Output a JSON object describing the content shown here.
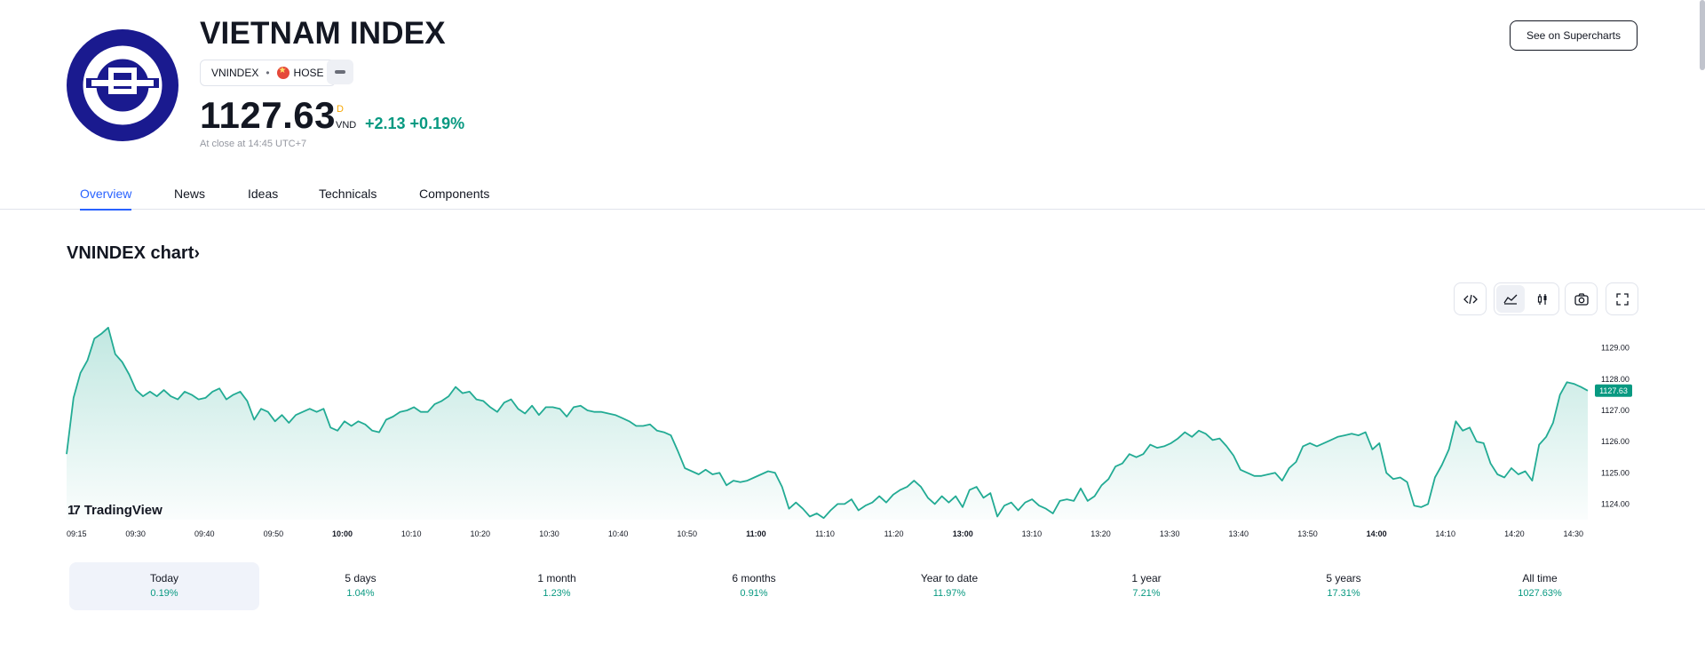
{
  "header": {
    "title": "VIETNAM INDEX",
    "symbol": "VNINDEX",
    "exchange": "HOSE",
    "price": "1127.63",
    "price_mark": "D",
    "currency": "VND",
    "change": "+2.13 +0.19%",
    "close_time": "At close at 14:45 UTC+7",
    "supercharts_label": "See on Supercharts",
    "accent_color": "#089981"
  },
  "tabs": [
    {
      "label": "Overview",
      "active": true
    },
    {
      "label": "News"
    },
    {
      "label": "Ideas"
    },
    {
      "label": "Technicals"
    },
    {
      "label": "Components"
    }
  ],
  "chart_section": {
    "title": "VNINDEX chart",
    "toolbar_icons": [
      "embed-icon",
      "area-chart-icon",
      "candles-icon",
      "camera-icon",
      "fullscreen-icon"
    ],
    "brand": "TradingView",
    "last_price_label": "1127.63"
  },
  "chart_data": {
    "type": "area",
    "y_ticks": [
      "1129.00",
      "1128.00",
      "1127.00",
      "1126.00",
      "1125.00",
      "1124.00"
    ],
    "x_ticks": [
      "09:15",
      "09:30",
      "09:40",
      "09:50",
      "10:00",
      "10:10",
      "10:20",
      "10:30",
      "10:40",
      "10:50",
      "11:00",
      "11:10",
      "11:20",
      "13:00",
      "13:10",
      "13:20",
      "13:30",
      "13:40",
      "13:50",
      "14:00",
      "14:10",
      "14:20",
      "14:30"
    ],
    "bold_x_ticks": [
      "10:00",
      "11:00",
      "13:00",
      "14:00"
    ],
    "ylim": [
      1123.5,
      1129.9
    ],
    "line_color": "#22ab94",
    "values": [
      1125.6,
      1127.4,
      1128.2,
      1128.6,
      1129.3,
      1129.45,
      1129.65,
      1128.8,
      1128.55,
      1128.15,
      1127.65,
      1127.45,
      1127.6,
      1127.45,
      1127.65,
      1127.45,
      1127.35,
      1127.6,
      1127.5,
      1127.35,
      1127.4,
      1127.6,
      1127.7,
      1127.35,
      1127.5,
      1127.6,
      1127.3,
      1126.7,
      1127.05,
      1126.95,
      1126.65,
      1126.85,
      1126.6,
      1126.85,
      1126.95,
      1127.05,
      1126.95,
      1127.05,
      1126.45,
      1126.35,
      1126.65,
      1126.5,
      1126.65,
      1126.55,
      1126.35,
      1126.3,
      1126.7,
      1126.8,
      1126.95,
      1127.0,
      1127.1,
      1126.95,
      1126.95,
      1127.2,
      1127.3,
      1127.45,
      1127.75,
      1127.55,
      1127.6,
      1127.35,
      1127.3,
      1127.1,
      1126.95,
      1127.25,
      1127.35,
      1127.05,
      1126.9,
      1127.15,
      1126.85,
      1127.1,
      1127.1,
      1127.05,
      1126.8,
      1127.1,
      1127.15,
      1127.0,
      1126.95,
      1126.95,
      1126.9,
      1126.85,
      1126.75,
      1126.65,
      1126.5,
      1126.5,
      1126.55,
      1126.35,
      1126.3,
      1126.2,
      1125.7,
      1125.15,
      1125.05,
      1124.95,
      1125.1,
      1124.95,
      1125.0,
      1124.6,
      1124.75,
      1124.7,
      1124.75,
      1124.85,
      1124.95,
      1125.05,
      1125.0,
      1124.55,
      1123.85,
      1124.05,
      1123.85,
      1123.6,
      1123.7,
      1123.55,
      1123.8,
      1124.0,
      1124.0,
      1124.15,
      1123.8,
      1123.95,
      1124.05,
      1124.25,
      1124.05,
      1124.3,
      1124.45,
      1124.55,
      1124.75,
      1124.55,
      1124.2,
      1124.0,
      1124.25,
      1124.05,
      1124.25,
      1123.9,
      1124.45,
      1124.55,
      1124.2,
      1124.35,
      1123.6,
      1123.95,
      1124.05,
      1123.8,
      1124.05,
      1124.15,
      1123.95,
      1123.85,
      1123.7,
      1124.1,
      1124.15,
      1124.1,
      1124.5,
      1124.1,
      1124.25,
      1124.6,
      1124.8,
      1125.2,
      1125.3,
      1125.6,
      1125.5,
      1125.6,
      1125.9,
      1125.8,
      1125.85,
      1125.95,
      1126.1,
      1126.3,
      1126.15,
      1126.35,
      1126.25,
      1126.05,
      1126.1,
      1125.85,
      1125.55,
      1125.1,
      1125.0,
      1124.9,
      1124.9,
      1124.95,
      1125.0,
      1124.75,
      1125.15,
      1125.35,
      1125.85,
      1125.95,
      1125.85,
      1125.95,
      1126.05,
      1126.15,
      1126.2,
      1126.25,
      1126.2,
      1126.3,
      1125.75,
      1125.95,
      1125.0,
      1124.8,
      1124.85,
      1124.7,
      1123.95,
      1123.9,
      1124.0,
      1124.85,
      1125.25,
      1125.75,
      1126.65,
      1126.35,
      1126.45,
      1126.0,
      1125.95,
      1125.3,
      1124.95,
      1124.85,
      1125.15,
      1124.95,
      1125.05,
      1124.75,
      1125.9,
      1126.15,
      1126.6,
      1127.5,
      1127.9,
      1127.85,
      1127.75,
      1127.63
    ]
  },
  "periods": [
    {
      "label": "Today",
      "value": "0.19%",
      "selected": true
    },
    {
      "label": "5 days",
      "value": "1.04%"
    },
    {
      "label": "1 month",
      "value": "1.23%"
    },
    {
      "label": "6 months",
      "value": "0.91%"
    },
    {
      "label": "Year to date",
      "value": "11.97%"
    },
    {
      "label": "1 year",
      "value": "7.21%"
    },
    {
      "label": "5 years",
      "value": "17.31%"
    },
    {
      "label": "All time",
      "value": "1027.63%"
    }
  ]
}
